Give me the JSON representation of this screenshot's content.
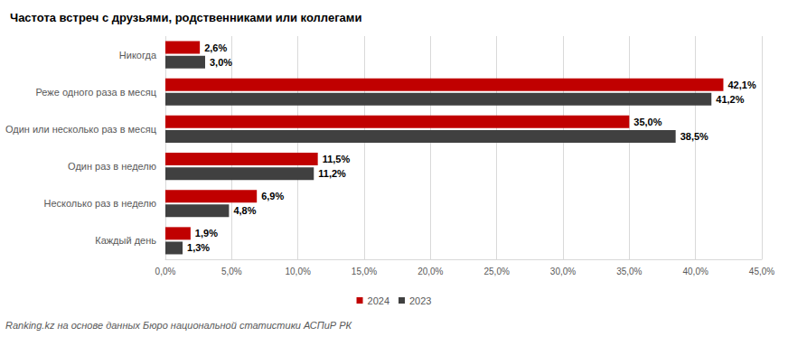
{
  "chart_data": {
    "type": "bar",
    "title": "Частота встреч с друзьями, родственниками или коллегами",
    "annotations": [
      "Ranking.kz на основе данных Бюро национальной статистики АСПиР РК"
    ],
    "orientation": "horizontal",
    "categories": [
      "Никогда",
      "Реже одного раза в месяц",
      "Один или несколько раз в месяц",
      "Один раз в неделю",
      "Несколько раз в неделю",
      "Каждый день"
    ],
    "series": [
      {
        "name": "2024",
        "color": "#c00000",
        "values": [
          2.6,
          42.1,
          35.0,
          11.5,
          6.9,
          1.9
        ],
        "value_labels": [
          "2,6%",
          "42,1%",
          "35,0%",
          "11,5%",
          "6,9%",
          "1,9%"
        ]
      },
      {
        "name": "2023",
        "color": "#404040",
        "values": [
          3.0,
          41.2,
          38.5,
          11.2,
          4.8,
          1.3
        ],
        "value_labels": [
          "3,0%",
          "41,2%",
          "38,5%",
          "11,2%",
          "4,8%",
          "1,3%"
        ]
      }
    ],
    "xlim": [
      0,
      45
    ],
    "xticks": [
      {
        "value": 0,
        "label": "0,0%"
      },
      {
        "value": 5,
        "label": "5,0%"
      },
      {
        "value": 10,
        "label": "10,0%"
      },
      {
        "value": 15,
        "label": "15,0%"
      },
      {
        "value": 20,
        "label": "20,0%"
      },
      {
        "value": 25,
        "label": "25,0%"
      },
      {
        "value": 30,
        "label": "30,0%"
      },
      {
        "value": 35,
        "label": "35,0%"
      },
      {
        "value": 40,
        "label": "40,0%"
      },
      {
        "value": 45,
        "label": "45,0%"
      }
    ],
    "grid": true,
    "legend": "bottom",
    "data_labels": true
  }
}
